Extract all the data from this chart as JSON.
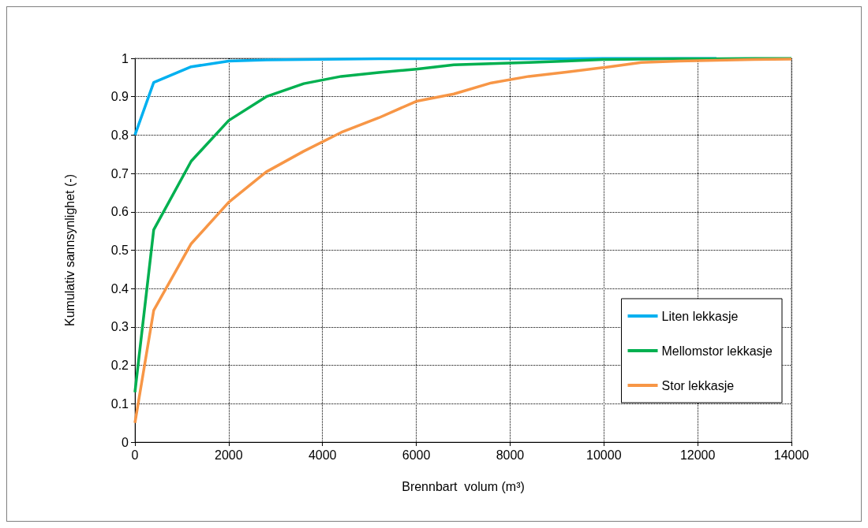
{
  "chart_data": {
    "type": "line",
    "xlabel": "Brennbart  volum (m³)",
    "ylabel": "Kumulativ sannsynlighet (-)",
    "x": [
      0,
      400,
      1200,
      2000,
      2800,
      3600,
      4400,
      5200,
      6000,
      6800,
      7600,
      8400,
      9200,
      10000,
      10800,
      11600,
      12400,
      13200,
      14000
    ],
    "series": [
      {
        "name": "Liten lekkasje",
        "color": "#00b0f0",
        "values": [
          0.8,
          0.937,
          0.978,
          0.993,
          0.996,
          0.997,
          0.998,
          0.999,
          0.999,
          0.999,
          0.999,
          0.999,
          0.999,
          1,
          1,
          1,
          1,
          null,
          null
        ]
      },
      {
        "name": "Mellomstor lekkasje",
        "color": "#00b050",
        "values": [
          0.13,
          0.553,
          0.732,
          0.838,
          0.9,
          0.934,
          0.953,
          0.963,
          0.972,
          0.983,
          0.986,
          0.989,
          0.993,
          0.997,
          0.998,
          0.999,
          0.999,
          1,
          1
        ]
      },
      {
        "name": "Stor lekkasje",
        "color": "#f79646",
        "values": [
          0.05,
          0.343,
          0.517,
          0.625,
          0.704,
          0.758,
          0.807,
          0.845,
          0.888,
          0.907,
          0.936,
          0.953,
          0.964,
          0.976,
          0.989,
          0.993,
          0.995,
          0.997,
          0.998
        ]
      }
    ],
    "xlim": [
      0,
      14000
    ],
    "xticks": [
      0,
      2000,
      4000,
      6000,
      8000,
      10000,
      12000,
      14000
    ],
    "ylim": [
      0,
      1
    ],
    "yticks": [
      0,
      0.1,
      0.2,
      0.3,
      0.4,
      0.5,
      0.6,
      0.7,
      0.8,
      0.9,
      1
    ],
    "grid": true,
    "legend": "bottom right",
    "marker": "none",
    "line_style": "solid"
  }
}
